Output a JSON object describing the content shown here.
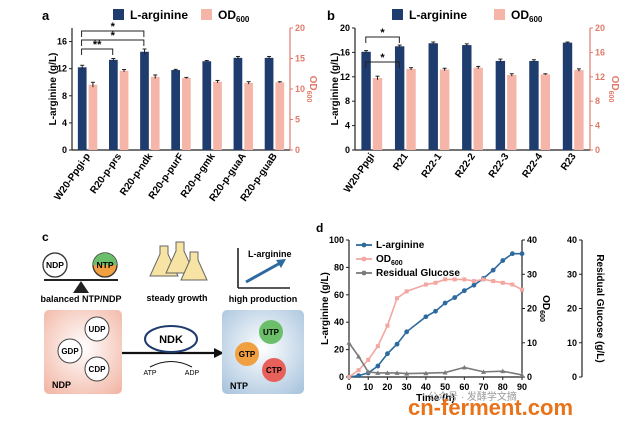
{
  "colors": {
    "navy": "#1f3c6e",
    "salmon": "#f5b5a8",
    "salmon_axis": "#e07b6a",
    "steel": "#2d6a9f",
    "pink": "#f4a6a0",
    "grey": "#7a7a7a",
    "teal": "#1a6a8a",
    "green": "#6cbf6a",
    "orange": "#f0a040",
    "red": "#e8605a"
  },
  "chart_data": [
    {
      "panel": "a",
      "type": "bar",
      "categories": [
        "W20-Ppgi-p",
        "R20-p-prs",
        "R20-p-ndk",
        "R20-p-purF",
        "R20-p-gmk",
        "R20-p-guaA",
        "R20-p-guaB"
      ],
      "series": [
        {
          "name": "L-arginine",
          "values": [
            12.2,
            13.3,
            14.5,
            11.8,
            13.1,
            13.6,
            13.6
          ],
          "errors": [
            0.3,
            0.2,
            0.4,
            0.1,
            0.1,
            0.2,
            0.2
          ]
        },
        {
          "name": "OD600",
          "values": [
            10.7,
            13.0,
            12.0,
            11.8,
            11.2,
            11.0,
            11.1
          ],
          "errors": [
            0.4,
            0.2,
            0.3,
            0.1,
            0.2,
            0.2,
            0.1
          ]
        }
      ],
      "ylabel": "L-arginine (g/L)",
      "y2label": "OD600",
      "ylim": [
        0,
        18
      ],
      "y2lim": [
        0,
        20
      ],
      "yticks": [
        "0",
        "4",
        "8",
        "12",
        "16"
      ],
      "y2ticks": [
        "0",
        "5",
        "10",
        "15",
        "20"
      ],
      "significance": [
        "**",
        "*",
        "*"
      ]
    },
    {
      "panel": "b",
      "type": "bar",
      "categories": [
        "W20-Ppgi",
        "R21",
        "R22-1",
        "R22-2",
        "R22-3",
        "R22-4",
        "R23"
      ],
      "series": [
        {
          "name": "L-arginine",
          "values": [
            16.1,
            17.0,
            17.5,
            17.2,
            14.6,
            14.6,
            17.6
          ],
          "errors": [
            0.2,
            0.2,
            0.2,
            0.2,
            0.3,
            0.2,
            0.1
          ]
        },
        {
          "name": "OD600",
          "values": [
            11.8,
            13.3,
            13.2,
            13.5,
            12.3,
            12.4,
            13.1
          ],
          "errors": [
            0.3,
            0.2,
            0.2,
            0.2,
            0.2,
            0.1,
            0.2
          ]
        }
      ],
      "ylabel": "L-arginine (g/L)",
      "y2label": "OD600",
      "ylim": [
        0,
        20
      ],
      "y2lim": [
        0,
        20
      ],
      "yticks": [
        "0",
        "4",
        "8",
        "12",
        "16",
        "20"
      ],
      "y2ticks": [
        "0",
        "4",
        "8",
        "12",
        "16",
        "20"
      ],
      "significance": [
        "*",
        "*"
      ]
    },
    {
      "panel": "d",
      "type": "line",
      "xlabel": "Time (h)",
      "ylabel": "L-arginine (g/L)",
      "y2label": "OD600",
      "y3label": "Residual Glucose (g/L)",
      "xlim": [
        0,
        90
      ],
      "ylim": [
        0,
        100
      ],
      "y2lim": [
        0,
        40
      ],
      "y3lim": [
        0,
        40
      ],
      "xticks": [
        "0",
        "10",
        "20",
        "30",
        "40",
        "50",
        "60",
        "70",
        "80",
        "90"
      ],
      "yticks": [
        "0",
        "20",
        "40",
        "60",
        "80",
        "100"
      ],
      "y2ticks": [
        "0",
        "10",
        "20",
        "30",
        "40"
      ],
      "y3ticks": [
        "0",
        "10",
        "20",
        "30",
        "40"
      ],
      "series": [
        {
          "name": "L-arginine",
          "axis": "left",
          "x": [
            0,
            5,
            10,
            15,
            20,
            25,
            30,
            40,
            45,
            50,
            55,
            60,
            65,
            70,
            75,
            80,
            85,
            90
          ],
          "y": [
            0,
            1,
            3,
            8,
            17,
            24,
            33,
            44,
            48,
            54,
            58,
            63,
            67,
            72,
            78,
            85,
            90,
            90
          ]
        },
        {
          "name": "OD600",
          "axis": "right",
          "x": [
            0,
            5,
            10,
            15,
            20,
            25,
            30,
            40,
            45,
            50,
            55,
            60,
            65,
            70,
            75,
            80,
            85,
            90
          ],
          "y": [
            0,
            2,
            5,
            9,
            15,
            23,
            25,
            27,
            27.5,
            28.5,
            28.5,
            28.5,
            28,
            28.5,
            28,
            27.5,
            27,
            25.5
          ]
        },
        {
          "name": "Residual Glucose",
          "axis": "right2",
          "x": [
            0,
            5,
            10,
            15,
            20,
            25,
            30,
            40,
            50,
            60,
            70,
            80,
            90
          ],
          "y": [
            10,
            6,
            1.5,
            1.2,
            1.2,
            1.2,
            1.0,
            1.1,
            1.3,
            2.8,
            1.5,
            1.7,
            0.6
          ]
        }
      ]
    }
  ],
  "labels": {
    "panel_a": "a",
    "panel_b": "b",
    "panel_c": "c",
    "panel_d": "d",
    "legend_arg": "L-arginine",
    "legend_od": "OD",
    "legend_od_sub": "600",
    "legend_glucose": "Residual Glucose",
    "ndp": "NDP",
    "ntp": "NTP",
    "balanced": "balanced NTP/NDP",
    "steady": "steady growth",
    "high": "high production",
    "larg_arrow": "L-arginine",
    "udp": "UDP",
    "gdp": "GDP",
    "cdp": "CDP",
    "ndp_box": "NDP",
    "ndk": "NDK",
    "atp": "ATP",
    "adp": "ADP",
    "utp": "UTP",
    "gtp": "GTP",
    "ctp": "CTP",
    "ntp_box": "NTP",
    "watermark": "cn-ferment.com",
    "watermark_cn": "公众号 · 发酵学文摘"
  }
}
